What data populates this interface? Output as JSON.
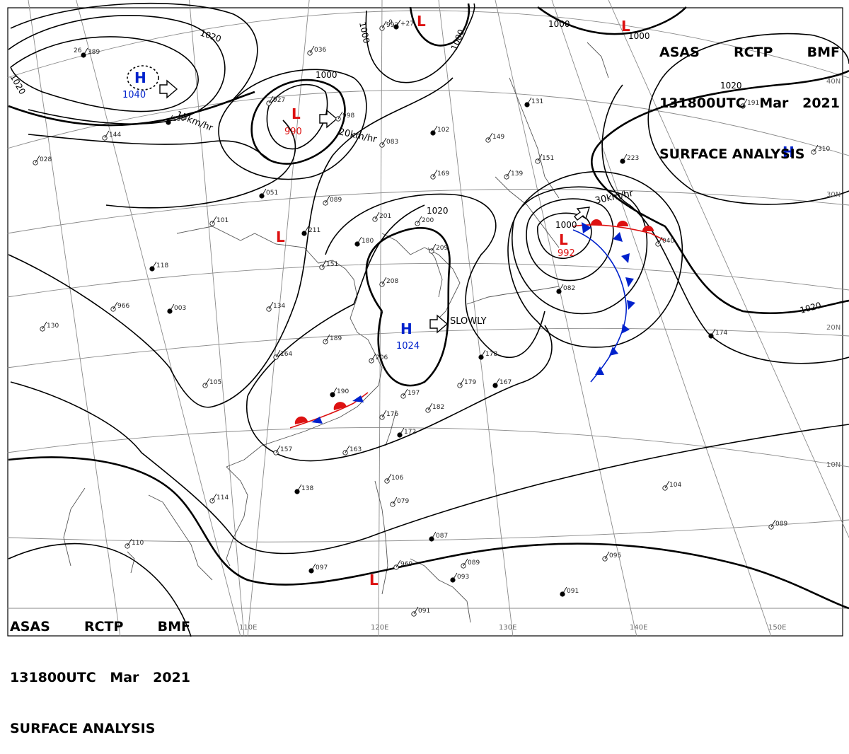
{
  "header": {
    "line1": [
      "ASAS",
      "RCTP",
      "BMF"
    ],
    "line2": [
      "131800UTC",
      "Mar",
      "2021"
    ],
    "line3": "SURFACE ANALYSIS"
  },
  "isobar_labels": [
    {
      "id": "i1020a",
      "text": "1020"
    },
    {
      "id": "i1020b",
      "text": "1020"
    },
    {
      "id": "i1000a",
      "text": "1000"
    },
    {
      "id": "i1000b",
      "text": "1000"
    },
    {
      "id": "i1000c",
      "text": "1000"
    },
    {
      "id": "i1000d",
      "text": "1000"
    },
    {
      "id": "i1000e",
      "text": "1000"
    },
    {
      "id": "i1020c",
      "text": "1020"
    },
    {
      "id": "i1020d",
      "text": "1020"
    },
    {
      "id": "i1020e",
      "text": "1020"
    },
    {
      "id": "i1000f",
      "text": "1000"
    }
  ],
  "pressure_centers": [
    {
      "id": "h1",
      "type": "H",
      "value": "1040"
    },
    {
      "id": "l1",
      "type": "L",
      "value": "990"
    },
    {
      "id": "h2",
      "type": "H",
      "value": "1024"
    },
    {
      "id": "l2",
      "type": "L",
      "value": "992"
    },
    {
      "id": "l3",
      "type": "L",
      "value": ""
    },
    {
      "id": "l4",
      "type": "L",
      "value": ""
    },
    {
      "id": "h3",
      "type": "H",
      "value": ""
    },
    {
      "id": "l5",
      "type": "L",
      "value": ""
    },
    {
      "id": "l6",
      "type": "L",
      "value": ""
    }
  ],
  "motion_labels": [
    {
      "id": "m1",
      "text": "15km/hr"
    },
    {
      "id": "m2",
      "text": "20km/hr"
    },
    {
      "id": "m3",
      "text": "SLOWLY"
    },
    {
      "id": "m4",
      "text": "30km/hr"
    }
  ],
  "longitude_labels": [
    "110E",
    "120E",
    "130E",
    "140E",
    "150E"
  ],
  "latitude_labels": [
    "40N",
    "30N",
    "20N",
    "10N"
  ],
  "stations": [
    {
      "t": "26",
      "p": "389"
    },
    {
      "t": "",
      "p": "036"
    },
    {
      "t": "",
      "p": "992"
    },
    {
      "t": "-9",
      "p": "+27"
    },
    {
      "t": "",
      "p": "144"
    },
    {
      "t": "",
      "p": "028"
    },
    {
      "t": "",
      "p": "190"
    },
    {
      "t": "",
      "p": "927"
    },
    {
      "t": "",
      "p": "998"
    },
    {
      "t": "",
      "p": "102"
    },
    {
      "t": "",
      "p": "083"
    },
    {
      "t": "",
      "p": "149"
    },
    {
      "t": "",
      "p": "131"
    },
    {
      "t": "",
      "p": "151"
    },
    {
      "t": "",
      "p": "139"
    },
    {
      "t": "",
      "p": "223"
    },
    {
      "t": "",
      "p": "310"
    },
    {
      "t": "",
      "p": "191"
    },
    {
      "t": "",
      "p": "051"
    },
    {
      "t": "",
      "p": "089"
    },
    {
      "t": "",
      "p": "101"
    },
    {
      "t": "",
      "p": "211"
    },
    {
      "t": "",
      "p": "201"
    },
    {
      "t": "",
      "p": "169"
    },
    {
      "t": "",
      "p": "180"
    },
    {
      "t": "",
      "p": "200"
    },
    {
      "t": "",
      "p": "209"
    },
    {
      "t": "",
      "p": "118"
    },
    {
      "t": "",
      "p": "151"
    },
    {
      "t": "",
      "p": "208"
    },
    {
      "t": "",
      "p": "003"
    },
    {
      "t": "",
      "p": "966"
    },
    {
      "t": "",
      "p": "134"
    },
    {
      "t": "",
      "p": "082"
    },
    {
      "t": "",
      "p": "189"
    },
    {
      "t": "",
      "p": "206"
    },
    {
      "t": "",
      "p": "178"
    },
    {
      "t": "",
      "p": "164"
    },
    {
      "t": "",
      "p": "105"
    },
    {
      "t": "",
      "p": "190"
    },
    {
      "t": "",
      "p": "197"
    },
    {
      "t": "",
      "p": "179"
    },
    {
      "t": "",
      "p": "167"
    },
    {
      "t": "",
      "p": "182"
    },
    {
      "t": "",
      "p": "176"
    },
    {
      "t": "",
      "p": "172"
    },
    {
      "t": "",
      "p": "163"
    },
    {
      "t": "",
      "p": "157"
    },
    {
      "t": "",
      "p": "138"
    },
    {
      "t": "",
      "p": "114"
    },
    {
      "t": "",
      "p": "110"
    },
    {
      "t": "",
      "p": "097"
    },
    {
      "t": "",
      "p": "106"
    },
    {
      "t": "",
      "p": "079"
    },
    {
      "t": "",
      "p": "087"
    },
    {
      "t": "",
      "p": "089"
    },
    {
      "t": "",
      "p": "969"
    },
    {
      "t": "",
      "p": "093"
    },
    {
      "t": "",
      "p": "091"
    },
    {
      "t": "",
      "p": "095"
    },
    {
      "t": "",
      "p": "091"
    },
    {
      "t": "",
      "p": "104"
    },
    {
      "t": "",
      "p": "089"
    },
    {
      "t": "",
      "p": "174"
    },
    {
      "t": "",
      "p": "130"
    },
    {
      "t": "",
      "p": "040"
    }
  ],
  "colors": {
    "high": "#0022cc",
    "low": "#dd1111",
    "isobar": "#000000",
    "grid": "#888888",
    "coast": "#555555"
  }
}
